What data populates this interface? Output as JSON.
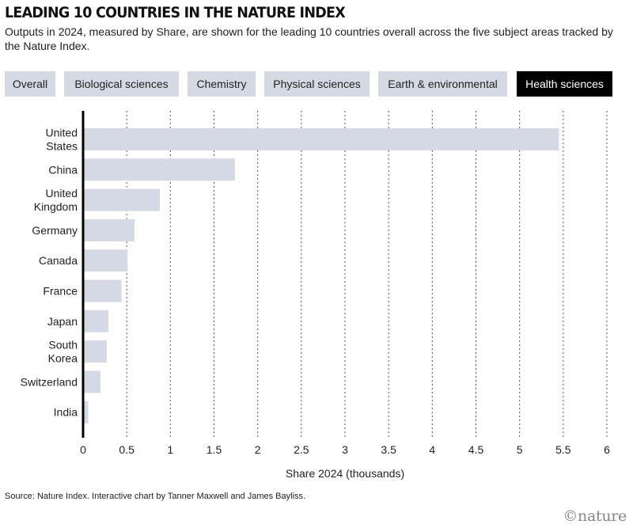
{
  "header": {
    "title": "LEADING 10 COUNTRIES IN THE NATURE INDEX",
    "subtitle": "Outputs in 2024, measured by Share, are shown for the leading 10 countries overall across the five subject areas tracked by the Nature Index."
  },
  "tabs": [
    {
      "label": "Overall",
      "active": false
    },
    {
      "label": "Biological sciences",
      "active": false
    },
    {
      "label": "Chemistry",
      "active": false
    },
    {
      "label": "Physical sciences",
      "active": false
    },
    {
      "label": "Earth & environmental",
      "active": false
    },
    {
      "label": "Health sciences",
      "active": true
    }
  ],
  "chart_data": {
    "type": "bar",
    "orientation": "horizontal",
    "categories": [
      [
        "United",
        "States"
      ],
      [
        "China"
      ],
      [
        "United",
        "Kingdom"
      ],
      [
        "Germany"
      ],
      [
        "Canada"
      ],
      [
        "France"
      ],
      [
        "Japan"
      ],
      [
        "South",
        "Korea"
      ],
      [
        "Switzerland"
      ],
      [
        "India"
      ]
    ],
    "values": [
      5.45,
      1.74,
      0.88,
      0.59,
      0.51,
      0.44,
      0.29,
      0.27,
      0.2,
      0.06
    ],
    "xlabel": "Share 2024 (thousands)",
    "xlim": [
      0,
      6
    ],
    "xticks": [
      "0",
      "0.5",
      "1",
      "1.5",
      "2",
      "2.5",
      "3",
      "3.5",
      "4",
      "4.5",
      "5",
      "5.5",
      "6"
    ],
    "grid": "vertical dashed",
    "bar_color": "#d5d9e3"
  },
  "footer": {
    "source": "Source: Nature Index. Interactive chart by Tanner Maxwell and James Bayliss.",
    "logo": "©nature"
  }
}
